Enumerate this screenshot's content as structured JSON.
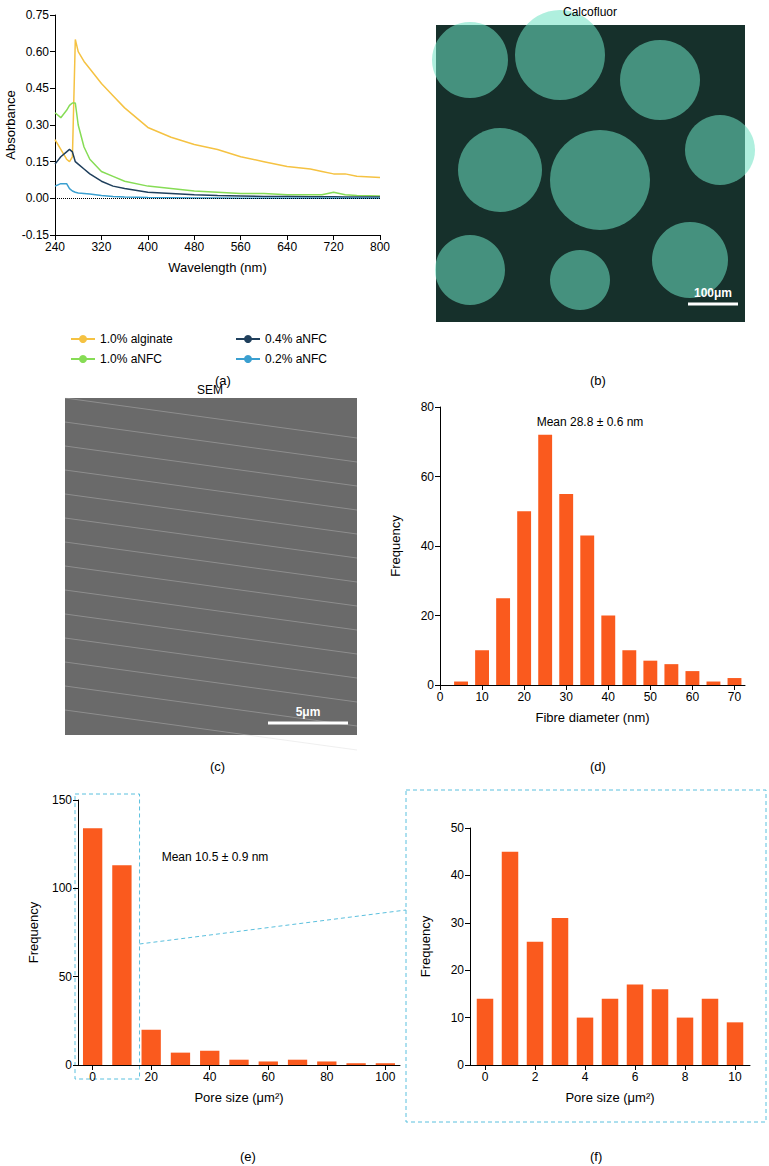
{
  "chart_data": [
    {
      "type": "line",
      "panel_label": "(a)",
      "x_label": "Wavelength (nm)",
      "y_label": "Absorbance",
      "x": [
        240,
        250,
        260,
        265,
        270,
        275,
        280,
        290,
        300,
        320,
        340,
        360,
        400,
        440,
        480,
        520,
        560,
        600,
        640,
        680,
        700,
        720,
        740,
        760,
        800
      ],
      "series": [
        {
          "name": "1.0% alginate",
          "color": "#f5c242",
          "values": [
            0.24,
            0.2,
            0.16,
            0.15,
            0.17,
            0.65,
            0.6,
            0.56,
            0.53,
            0.47,
            0.42,
            0.37,
            0.29,
            0.25,
            0.22,
            0.2,
            0.17,
            0.15,
            0.13,
            0.12,
            0.11,
            0.1,
            0.1,
            0.09,
            0.085
          ]
        },
        {
          "name": "1.0% aNFC",
          "color": "#86dc55",
          "values": [
            0.35,
            0.33,
            0.36,
            0.38,
            0.39,
            0.39,
            0.3,
            0.21,
            0.16,
            0.11,
            0.09,
            0.07,
            0.05,
            0.04,
            0.03,
            0.025,
            0.02,
            0.02,
            0.015,
            0.015,
            0.015,
            0.025,
            0.015,
            0.012,
            0.01
          ]
        },
        {
          "name": "0.4% aNFC",
          "color": "#1f3f5c",
          "values": [
            0.14,
            0.17,
            0.19,
            0.2,
            0.19,
            0.15,
            0.14,
            0.12,
            0.1,
            0.07,
            0.05,
            0.04,
            0.025,
            0.02,
            0.015,
            0.012,
            0.01,
            0.008,
            0.007,
            0.006,
            0.006,
            0.006,
            0.005,
            0.005,
            0.005
          ]
        },
        {
          "name": "0.2% aNFC",
          "color": "#3a9fd0",
          "values": [
            0.05,
            0.06,
            0.06,
            0.04,
            0.03,
            0.025,
            0.022,
            0.02,
            0.018,
            0.012,
            0.008,
            0.005,
            0.003,
            0.002,
            0.001,
            0.001,
            0,
            0,
            0,
            0,
            0,
            0,
            0,
            0,
            0
          ]
        }
      ],
      "xlim": [
        240,
        800
      ],
      "xticks": [
        240,
        320,
        400,
        480,
        560,
        640,
        720,
        800
      ],
      "ylim": [
        -0.15,
        0.75
      ],
      "yticks": [
        {
          "value": -0.15,
          "label": "-0.15"
        },
        {
          "value": 0,
          "label": "0.00"
        },
        {
          "value": 0.15,
          "label": "0.15"
        },
        {
          "value": 0.3,
          "label": "0.30"
        },
        {
          "value": 0.45,
          "label": "0.45"
        },
        {
          "value": 0.6,
          "label": "0.60"
        },
        {
          "value": 0.75,
          "label": "0.75"
        }
      ],
      "baseline": 0,
      "legend": "bottom",
      "grid": false
    },
    {
      "type": "image",
      "title": "Calcofluor",
      "scale_bar": "100μm",
      "panel_label": "(b)"
    },
    {
      "type": "image",
      "title": "SEM",
      "scale_bar": "5μm",
      "panel_label": "(c)"
    },
    {
      "type": "histogram",
      "panel_label": "(d)",
      "annotation": "Mean 28.8 ± 0.6 nm",
      "x_label": "Fibre diameter (nm)",
      "y_label": "Frequency",
      "bins": [
        2.5,
        7.5,
        12.5,
        17.5,
        22.5,
        27.5,
        32.5,
        37.5,
        42.5,
        47.5,
        52.5,
        57.5,
        62.5,
        67.5,
        72.5
      ],
      "values": [
        1,
        10,
        25,
        50,
        72,
        55,
        43,
        20,
        10,
        7,
        6,
        4,
        1,
        2
      ],
      "color": "#fa5a1e",
      "xlim": [
        0,
        72.5
      ],
      "xticks": [
        0,
        10,
        20,
        30,
        40,
        50,
        60,
        70
      ],
      "ylim": [
        0,
        80
      ],
      "yticks": [
        0,
        20,
        40,
        60,
        80
      ],
      "grid": false
    },
    {
      "type": "histogram",
      "panel_label": "(e)",
      "annotation": "Mean 10.5 ± 0.9 nm",
      "x_label": "Pore size (μm²)",
      "y_label": "Frequency",
      "bins": [
        -5,
        5,
        15,
        25,
        35,
        45,
        55,
        65,
        75,
        85,
        95,
        105
      ],
      "values": [
        134,
        113,
        20,
        7,
        8,
        3,
        2,
        3,
        2,
        1,
        1
      ],
      "color": "#fa5a1e",
      "xlim": [
        -5,
        105
      ],
      "xticks": [
        0,
        20,
        40,
        60,
        80,
        100
      ],
      "ylim": [
        0,
        150
      ],
      "yticks": [
        0,
        50,
        100,
        150
      ],
      "grid": false
    },
    {
      "type": "histogram",
      "panel_label": "(f)",
      "x_label": "Pore size (μm²)",
      "y_label": "Frequency",
      "bins": [
        -0.5,
        0.5,
        1.5,
        2.5,
        3.5,
        4.5,
        5.5,
        6.5,
        7.5,
        8.5,
        9.5,
        10.5
      ],
      "values": [
        14,
        45,
        26,
        31,
        10,
        14,
        17,
        16,
        10,
        14,
        9
      ],
      "color": "#fa5a1e",
      "xlim": [
        -0.6,
        10.6
      ],
      "xticks": [
        0,
        2,
        4,
        6,
        8,
        10
      ],
      "ylim": [
        0,
        50
      ],
      "yticks": [
        0,
        10,
        20,
        30,
        40,
        50
      ],
      "grid": false
    }
  ]
}
